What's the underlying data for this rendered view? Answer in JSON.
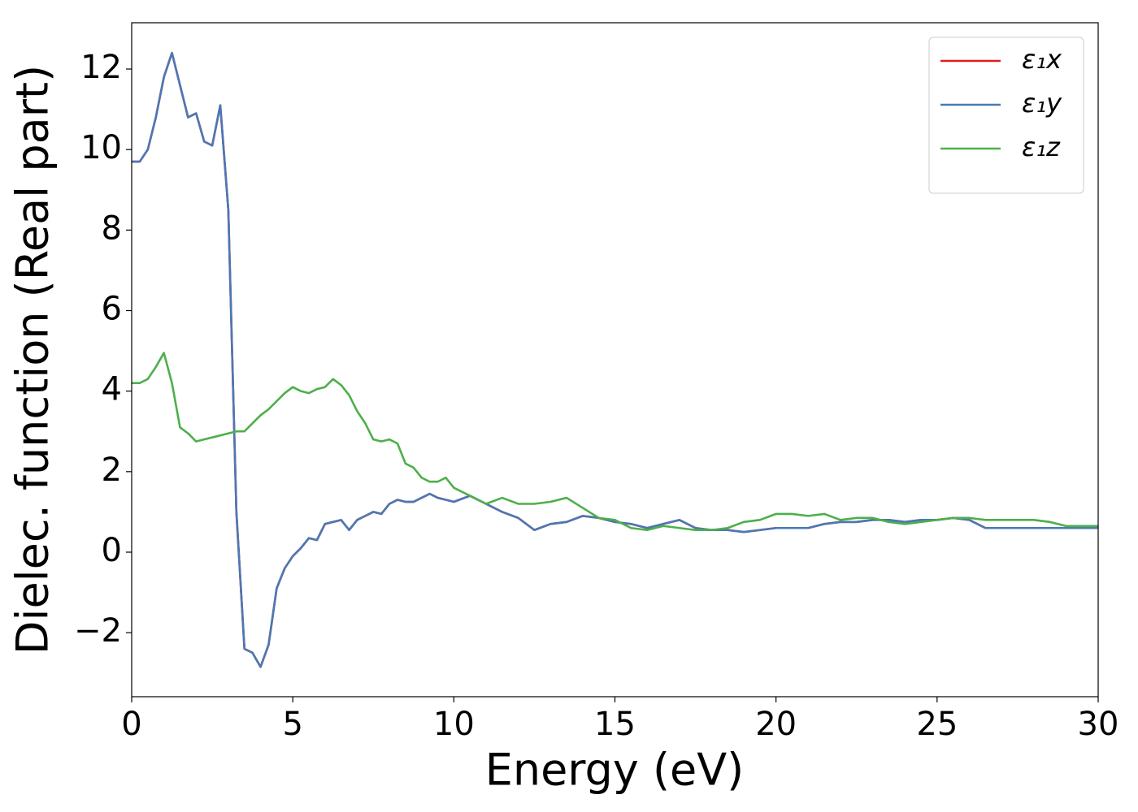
{
  "chart_data": {
    "type": "line",
    "x_label": "Energy (eV)",
    "y_label": "Dielec. function (Real part)",
    "x": [
      0,
      0.25,
      0.5,
      0.75,
      1,
      1.25,
      1.5,
      1.75,
      2,
      2.25,
      2.5,
      2.75,
      3,
      3.25,
      3.5,
      3.75,
      4,
      4.25,
      4.5,
      4.75,
      5,
      5.25,
      5.5,
      5.75,
      6,
      6.25,
      6.5,
      6.75,
      7,
      7.25,
      7.5,
      7.75,
      8,
      8.25,
      8.5,
      8.75,
      9,
      9.25,
      9.5,
      9.75,
      10,
      10.5,
      11,
      11.5,
      12,
      12.5,
      13,
      13.5,
      14,
      14.5,
      15,
      15.5,
      16,
      16.5,
      17,
      17.5,
      18,
      18.5,
      19,
      19.5,
      20,
      20.5,
      21,
      21.5,
      22,
      22.5,
      23,
      23.5,
      24,
      24.5,
      25,
      25.5,
      26,
      26.5,
      27,
      27.5,
      28,
      28.5,
      29,
      29.5,
      30
    ],
    "series": [
      {
        "name": "ε₁x",
        "color": "#e41a1c",
        "values": [
          9.7,
          9.7,
          10.0,
          10.8,
          11.8,
          12.4,
          11.6,
          10.8,
          10.9,
          10.2,
          10.1,
          11.1,
          8.5,
          1.0,
          -2.4,
          -2.5,
          -2.85,
          -2.3,
          -0.9,
          -0.4,
          -0.1,
          0.1,
          0.35,
          0.3,
          0.7,
          0.75,
          0.8,
          0.55,
          0.8,
          0.9,
          1.0,
          0.95,
          1.2,
          1.3,
          1.25,
          1.25,
          1.35,
          1.45,
          1.35,
          1.3,
          1.25,
          1.4,
          1.2,
          1.0,
          0.85,
          0.55,
          0.7,
          0.75,
          0.9,
          0.85,
          0.75,
          0.7,
          0.6,
          0.7,
          0.8,
          0.6,
          0.55,
          0.55,
          0.5,
          0.55,
          0.6,
          0.6,
          0.6,
          0.7,
          0.75,
          0.75,
          0.8,
          0.8,
          0.75,
          0.8,
          0.8,
          0.85,
          0.8,
          0.6,
          0.6,
          0.6,
          0.6,
          0.6,
          0.6,
          0.6,
          0.6
        ]
      },
      {
        "name": "ε₁y",
        "color": "#4a78b5",
        "values": [
          9.7,
          9.7,
          10.0,
          10.8,
          11.8,
          12.4,
          11.6,
          10.8,
          10.9,
          10.2,
          10.1,
          11.1,
          8.5,
          1.0,
          -2.4,
          -2.5,
          -2.85,
          -2.3,
          -0.9,
          -0.4,
          -0.1,
          0.1,
          0.35,
          0.3,
          0.7,
          0.75,
          0.8,
          0.55,
          0.8,
          0.9,
          1.0,
          0.95,
          1.2,
          1.3,
          1.25,
          1.25,
          1.35,
          1.45,
          1.35,
          1.3,
          1.25,
          1.4,
          1.2,
          1.0,
          0.85,
          0.55,
          0.7,
          0.75,
          0.9,
          0.85,
          0.75,
          0.7,
          0.6,
          0.7,
          0.8,
          0.6,
          0.55,
          0.55,
          0.5,
          0.55,
          0.6,
          0.6,
          0.6,
          0.7,
          0.75,
          0.75,
          0.8,
          0.8,
          0.75,
          0.8,
          0.8,
          0.85,
          0.8,
          0.6,
          0.6,
          0.6,
          0.6,
          0.6,
          0.6,
          0.6,
          0.6
        ]
      },
      {
        "name": "ε₁z",
        "color": "#4daf4a",
        "values": [
          4.2,
          4.2,
          4.3,
          4.6,
          4.95,
          4.2,
          3.1,
          2.95,
          2.75,
          2.8,
          2.85,
          2.9,
          2.95,
          3.0,
          3.0,
          3.2,
          3.4,
          3.55,
          3.75,
          3.95,
          4.1,
          4.0,
          3.95,
          4.05,
          4.1,
          4.3,
          4.15,
          3.9,
          3.5,
          3.2,
          2.8,
          2.75,
          2.8,
          2.7,
          2.2,
          2.1,
          1.85,
          1.75,
          1.75,
          1.85,
          1.6,
          1.4,
          1.2,
          1.35,
          1.2,
          1.2,
          1.25,
          1.35,
          1.1,
          0.85,
          0.8,
          0.6,
          0.55,
          0.65,
          0.6,
          0.55,
          0.55,
          0.6,
          0.75,
          0.8,
          0.95,
          0.95,
          0.9,
          0.95,
          0.8,
          0.85,
          0.85,
          0.75,
          0.7,
          0.75,
          0.8,
          0.85,
          0.85,
          0.8,
          0.8,
          0.8,
          0.8,
          0.75,
          0.65,
          0.65,
          0.65
        ]
      }
    ],
    "xlim": [
      0,
      30
    ],
    "xticks": [
      0,
      5,
      10,
      15,
      20,
      25,
      30
    ],
    "ylim": [
      -3.59,
      13.15
    ],
    "yticks": [
      {
        "value": -2,
        "label": "−2"
      },
      0,
      2,
      4,
      6,
      8,
      10,
      12
    ],
    "legend": "upper right",
    "grid": false
  }
}
